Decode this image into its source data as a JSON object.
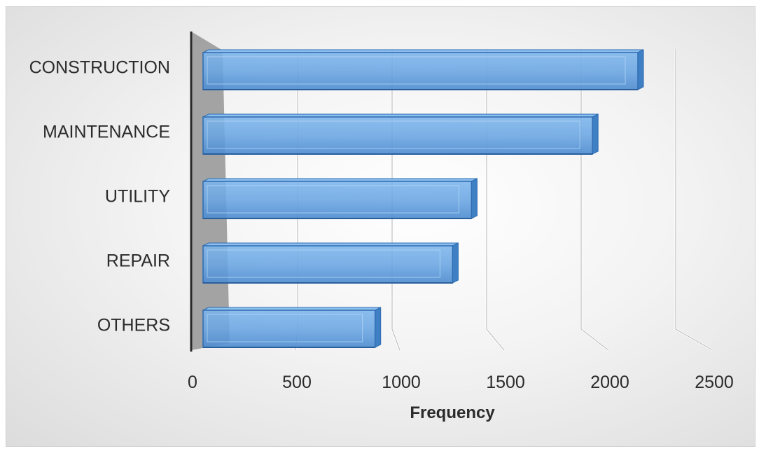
{
  "chart_data": {
    "type": "bar",
    "orientation": "horizontal",
    "style": "3d",
    "title": "",
    "xlabel": "Frequency",
    "ylabel": "",
    "categories": [
      "CONSTRUCTION",
      "MAINTENANCE",
      "UTILITY",
      "REPAIR",
      "OTHERS"
    ],
    "values": [
      2300,
      2060,
      1420,
      1320,
      910
    ],
    "xlim": [
      0,
      2500
    ],
    "xticks": [
      "0",
      "500",
      "1000",
      "1500",
      "2000",
      "2500"
    ],
    "grid": true,
    "legend": "none",
    "bar_color": "#5b9bd5",
    "bar_edge_color": "#2e6bb0",
    "wall_color": "#9a9a9a",
    "gridline_color": "#bfbfbf"
  }
}
